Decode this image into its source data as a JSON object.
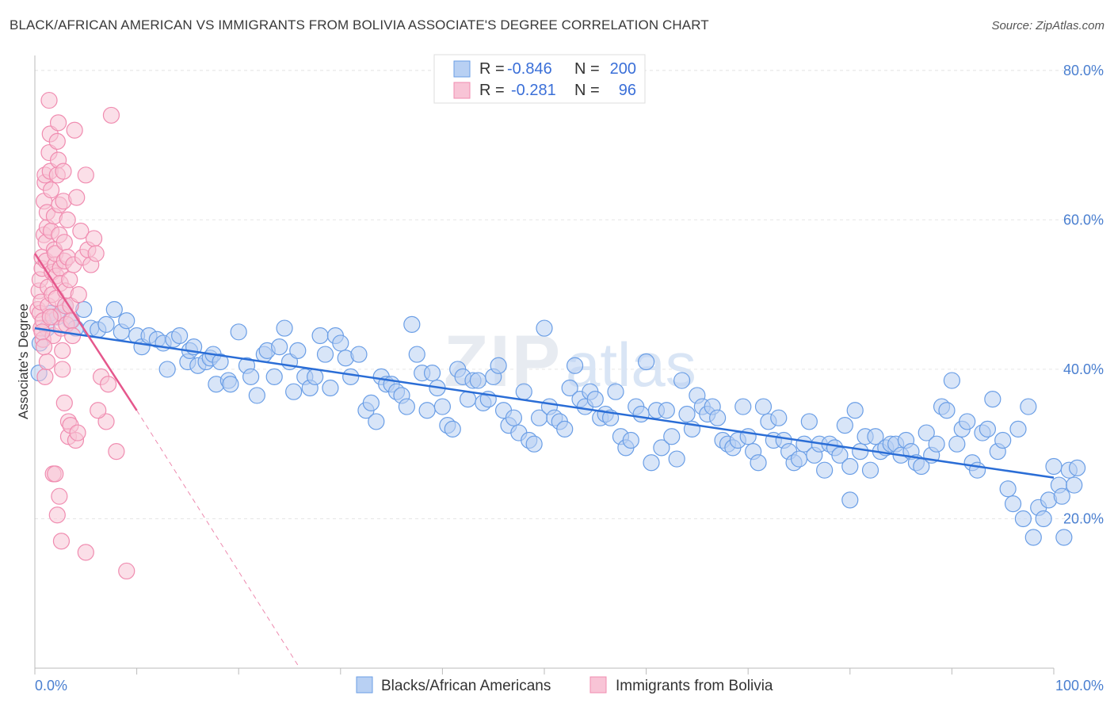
{
  "title": "BLACK/AFRICAN AMERICAN VS IMMIGRANTS FROM BOLIVIA ASSOCIATE'S DEGREE CORRELATION CHART",
  "source": "Source: ZipAtlas.com",
  "watermark": {
    "zip": "ZIP",
    "atlas": "atlas"
  },
  "legend": {
    "r_label": "R =",
    "n_label": "N =",
    "series1": {
      "r": "-0.846",
      "n": "200"
    },
    "series2": {
      "r": "-0.281",
      "n": "96"
    }
  },
  "chart_data": {
    "type": "scatter",
    "xlabel": "",
    "ylabel": "Associate's Degree",
    "xlim": [
      0,
      100
    ],
    "ylim": [
      0,
      82
    ],
    "x_tick_labels": [
      "0.0%",
      "100.0%"
    ],
    "y_ticks": [
      20,
      40,
      60,
      80
    ],
    "y_tick_labels": [
      "20.0%",
      "40.0%",
      "60.0%",
      "80.0%"
    ],
    "grid": true,
    "series": [
      {
        "name": "Blacks/African Americans",
        "color": "#6a9ee6",
        "fill": "#b8d0f3",
        "trend": {
          "x": [
            0,
            100
          ],
          "y": [
            45.5,
            25.5
          ],
          "color": "#2a6dd6"
        },
        "points": [
          [
            0.4,
            39.5
          ],
          [
            0.5,
            43.5
          ],
          [
            1.2,
            45.5
          ],
          [
            1.5,
            47.5
          ],
          [
            2.2,
            47.0
          ],
          [
            3.0,
            48.5
          ],
          [
            3.5,
            46.5
          ],
          [
            4.0,
            45.5
          ],
          [
            4.8,
            48.0
          ],
          [
            5.5,
            45.5
          ],
          [
            6.2,
            45.3
          ],
          [
            7.0,
            46.0
          ],
          [
            7.8,
            48.0
          ],
          [
            8.5,
            45.0
          ],
          [
            9.0,
            46.5
          ],
          [
            10.0,
            44.5
          ],
          [
            10.5,
            43.0
          ],
          [
            11.2,
            44.5
          ],
          [
            12.0,
            44.0
          ],
          [
            12.6,
            43.5
          ],
          [
            13.0,
            40.0
          ],
          [
            13.6,
            44.0
          ],
          [
            14.2,
            44.5
          ],
          [
            15.0,
            41.0
          ],
          [
            15.2,
            42.5
          ],
          [
            15.6,
            43.0
          ],
          [
            16.0,
            40.5
          ],
          [
            16.8,
            41.0
          ],
          [
            17.2,
            41.5
          ],
          [
            17.5,
            42.0
          ],
          [
            17.8,
            38.0
          ],
          [
            18.2,
            41.0
          ],
          [
            19.0,
            38.5
          ],
          [
            19.2,
            38.0
          ],
          [
            20.0,
            45.0
          ],
          [
            20.8,
            40.5
          ],
          [
            21.2,
            39.0
          ],
          [
            21.8,
            36.5
          ],
          [
            22.5,
            42.0
          ],
          [
            22.8,
            42.5
          ],
          [
            23.5,
            39.0
          ],
          [
            24.0,
            43.0
          ],
          [
            24.5,
            45.5
          ],
          [
            25.0,
            41.0
          ],
          [
            25.4,
            37.0
          ],
          [
            25.8,
            42.5
          ],
          [
            26.5,
            39.0
          ],
          [
            27.0,
            37.5
          ],
          [
            27.5,
            39.0
          ],
          [
            28.0,
            44.5
          ],
          [
            28.5,
            42.0
          ],
          [
            29.0,
            37.5
          ],
          [
            29.5,
            44.5
          ],
          [
            30.0,
            43.5
          ],
          [
            30.5,
            41.5
          ],
          [
            31.0,
            39.0
          ],
          [
            31.8,
            42.0
          ],
          [
            32.5,
            34.5
          ],
          [
            33.0,
            35.5
          ],
          [
            33.5,
            33.0
          ],
          [
            34.0,
            39.0
          ],
          [
            34.5,
            38.0
          ],
          [
            35.0,
            38.0
          ],
          [
            35.5,
            37.0
          ],
          [
            36.0,
            36.5
          ],
          [
            36.5,
            35.0
          ],
          [
            37.0,
            46.0
          ],
          [
            37.5,
            42.0
          ],
          [
            38.0,
            39.5
          ],
          [
            38.5,
            34.5
          ],
          [
            39.0,
            39.5
          ],
          [
            39.5,
            37.5
          ],
          [
            40.0,
            35.0
          ],
          [
            40.5,
            32.5
          ],
          [
            41.0,
            32.0
          ],
          [
            41.5,
            40.0
          ],
          [
            42.0,
            39.0
          ],
          [
            42.5,
            36.0
          ],
          [
            43.0,
            38.5
          ],
          [
            43.5,
            38.5
          ],
          [
            44.0,
            35.5
          ],
          [
            44.5,
            36.0
          ],
          [
            45.0,
            39.0
          ],
          [
            45.5,
            40.5
          ],
          [
            46.0,
            34.5
          ],
          [
            46.5,
            32.5
          ],
          [
            47.0,
            33.5
          ],
          [
            47.5,
            31.5
          ],
          [
            48.0,
            37.0
          ],
          [
            48.5,
            30.5
          ],
          [
            49.0,
            30.0
          ],
          [
            49.5,
            33.5
          ],
          [
            50.0,
            45.5
          ],
          [
            50.5,
            35.0
          ],
          [
            51.0,
            33.5
          ],
          [
            51.5,
            33.0
          ],
          [
            52.0,
            32.0
          ],
          [
            52.5,
            37.5
          ],
          [
            53.0,
            40.5
          ],
          [
            53.5,
            36.0
          ],
          [
            54.0,
            35.0
          ],
          [
            54.5,
            37.0
          ],
          [
            55.0,
            36.0
          ],
          [
            55.5,
            33.5
          ],
          [
            56.0,
            34.0
          ],
          [
            56.5,
            33.5
          ],
          [
            57.0,
            37.0
          ],
          [
            57.5,
            31.0
          ],
          [
            58.0,
            29.5
          ],
          [
            58.5,
            30.5
          ],
          [
            59.0,
            35.0
          ],
          [
            59.5,
            34.0
          ],
          [
            60.0,
            41.0
          ],
          [
            60.5,
            27.5
          ],
          [
            61.0,
            34.5
          ],
          [
            61.5,
            29.5
          ],
          [
            62.0,
            34.5
          ],
          [
            62.5,
            31.0
          ],
          [
            63.0,
            28.0
          ],
          [
            63.5,
            38.5
          ],
          [
            64.0,
            34.0
          ],
          [
            64.5,
            32.0
          ],
          [
            65.0,
            36.5
          ],
          [
            65.5,
            35.0
          ],
          [
            66.0,
            34.0
          ],
          [
            66.5,
            35.0
          ],
          [
            67.0,
            33.5
          ],
          [
            67.5,
            30.5
          ],
          [
            68.0,
            30.0
          ],
          [
            68.5,
            29.5
          ],
          [
            69.0,
            30.5
          ],
          [
            69.5,
            35.0
          ],
          [
            70.0,
            31.0
          ],
          [
            70.5,
            29.0
          ],
          [
            71.0,
            27.5
          ],
          [
            71.5,
            35.0
          ],
          [
            72.0,
            33.0
          ],
          [
            72.5,
            30.5
          ],
          [
            73.0,
            33.5
          ],
          [
            73.5,
            30.5
          ],
          [
            74.0,
            29.0
          ],
          [
            74.5,
            27.5
          ],
          [
            75.0,
            28.0
          ],
          [
            75.5,
            30.0
          ],
          [
            76.0,
            33.0
          ],
          [
            76.5,
            28.5
          ],
          [
            77.0,
            30.0
          ],
          [
            77.5,
            26.5
          ],
          [
            78.0,
            30.0
          ],
          [
            78.5,
            29.5
          ],
          [
            79.0,
            28.5
          ],
          [
            79.5,
            32.5
          ],
          [
            80.0,
            27.0
          ],
          [
            80.5,
            34.5
          ],
          [
            81.0,
            29.0
          ],
          [
            81.5,
            31.0
          ],
          [
            82.0,
            26.5
          ],
          [
            82.5,
            31.0
          ],
          [
            83.0,
            29.0
          ],
          [
            83.5,
            29.5
          ],
          [
            84.0,
            30.0
          ],
          [
            84.5,
            30.0
          ],
          [
            85.0,
            28.5
          ],
          [
            85.5,
            30.5
          ],
          [
            86.0,
            29.0
          ],
          [
            86.5,
            27.5
          ],
          [
            87.0,
            27.0
          ],
          [
            87.5,
            31.5
          ],
          [
            88.0,
            28.5
          ],
          [
            88.5,
            30.0
          ],
          [
            89.0,
            35.0
          ],
          [
            89.5,
            34.5
          ],
          [
            90.0,
            38.5
          ],
          [
            90.5,
            30.0
          ],
          [
            91.0,
            32.0
          ],
          [
            91.5,
            33.0
          ],
          [
            92.0,
            27.5
          ],
          [
            92.5,
            26.5
          ],
          [
            93.0,
            31.5
          ],
          [
            93.5,
            32.0
          ],
          [
            94.0,
            36.0
          ],
          [
            94.5,
            29.0
          ],
          [
            95.0,
            30.5
          ],
          [
            95.5,
            24.0
          ],
          [
            96.0,
            22.0
          ],
          [
            96.5,
            32.0
          ],
          [
            97.0,
            20.0
          ],
          [
            97.5,
            35.0
          ],
          [
            98.0,
            17.5
          ],
          [
            98.5,
            21.5
          ],
          [
            99.0,
            20.0
          ],
          [
            99.5,
            22.5
          ],
          [
            100.0,
            27.0
          ],
          [
            100.5,
            24.5
          ],
          [
            101.0,
            17.5
          ],
          [
            101.5,
            26.5
          ],
          [
            102.0,
            24.5
          ],
          [
            80.0,
            22.5
          ],
          [
            100.8,
            23.0
          ],
          [
            102.3,
            26.8
          ]
        ]
      },
      {
        "name": "Immigrants from Bolivia",
        "color": "#f08cb0",
        "fill": "#f8c4d6",
        "trend": {
          "x": [
            0,
            10
          ],
          "y": [
            55.5,
            34.5
          ],
          "color": "#e5578c",
          "dash_to": [
            26,
            0
          ]
        },
        "points": [
          [
            0.3,
            48.0
          ],
          [
            0.4,
            50.5
          ],
          [
            0.5,
            52.0
          ],
          [
            0.5,
            47.5
          ],
          [
            0.6,
            45.5
          ],
          [
            0.6,
            49.0
          ],
          [
            0.7,
            53.5
          ],
          [
            0.7,
            55.0
          ],
          [
            0.8,
            44.0
          ],
          [
            0.8,
            46.5
          ],
          [
            0.9,
            58.0
          ],
          [
            0.9,
            62.5
          ],
          [
            1.0,
            65.0
          ],
          [
            1.0,
            66.0
          ],
          [
            1.1,
            54.5
          ],
          [
            1.1,
            57.0
          ],
          [
            1.2,
            59.0
          ],
          [
            1.2,
            61.0
          ],
          [
            1.3,
            48.5
          ],
          [
            1.3,
            51.0
          ],
          [
            1.4,
            69.0
          ],
          [
            1.4,
            76.0
          ],
          [
            1.5,
            71.5
          ],
          [
            1.5,
            66.5
          ],
          [
            1.6,
            64.0
          ],
          [
            1.6,
            58.5
          ],
          [
            1.7,
            53.0
          ],
          [
            1.7,
            50.0
          ],
          [
            1.8,
            47.0
          ],
          [
            1.8,
            44.5
          ],
          [
            1.9,
            60.5
          ],
          [
            1.9,
            56.0
          ],
          [
            2.0,
            54.0
          ],
          [
            2.0,
            55.5
          ],
          [
            2.1,
            52.5
          ],
          [
            2.1,
            49.5
          ],
          [
            2.2,
            70.5
          ],
          [
            2.2,
            66.0
          ],
          [
            2.3,
            73.0
          ],
          [
            2.3,
            68.0
          ],
          [
            2.4,
            62.0
          ],
          [
            2.4,
            58.0
          ],
          [
            2.5,
            53.5
          ],
          [
            2.5,
            51.5
          ],
          [
            2.6,
            47.5
          ],
          [
            2.6,
            45.5
          ],
          [
            2.7,
            42.5
          ],
          [
            2.7,
            40.0
          ],
          [
            2.8,
            66.5
          ],
          [
            2.8,
            62.5
          ],
          [
            2.9,
            57.0
          ],
          [
            2.9,
            54.5
          ],
          [
            3.0,
            50.5
          ],
          [
            3.0,
            48.5
          ],
          [
            3.1,
            46.0
          ],
          [
            3.2,
            60.0
          ],
          [
            3.2,
            55.0
          ],
          [
            3.3,
            33.0
          ],
          [
            3.3,
            31.0
          ],
          [
            3.4,
            52.0
          ],
          [
            3.5,
            48.5
          ],
          [
            3.6,
            46.5
          ],
          [
            3.7,
            44.5
          ],
          [
            3.8,
            54.0
          ],
          [
            3.9,
            72.0
          ],
          [
            4.0,
            30.5
          ],
          [
            4.1,
            63.0
          ],
          [
            4.3,
            50.0
          ],
          [
            4.5,
            58.5
          ],
          [
            4.7,
            55.0
          ],
          [
            5.0,
            66.0
          ],
          [
            5.2,
            56.0
          ],
          [
            5.5,
            54.0
          ],
          [
            5.8,
            57.5
          ],
          [
            6.0,
            55.5
          ],
          [
            6.5,
            39.0
          ],
          [
            7.0,
            33.0
          ],
          [
            7.5,
            74.0
          ],
          [
            8.0,
            29.0
          ],
          [
            9.0,
            13.0
          ],
          [
            1.0,
            39.0
          ],
          [
            1.8,
            26.0
          ],
          [
            2.0,
            26.0
          ],
          [
            2.2,
            20.5
          ],
          [
            2.4,
            23.0
          ],
          [
            2.6,
            17.0
          ],
          [
            5.0,
            15.5
          ],
          [
            3.5,
            32.5
          ],
          [
            0.7,
            45.0
          ],
          [
            1.5,
            47.0
          ],
          [
            2.9,
            35.5
          ],
          [
            4.2,
            31.5
          ],
          [
            6.2,
            34.5
          ],
          [
            7.2,
            38.0
          ],
          [
            1.2,
            41.0
          ],
          [
            0.9,
            43.0
          ]
        ]
      }
    ]
  }
}
